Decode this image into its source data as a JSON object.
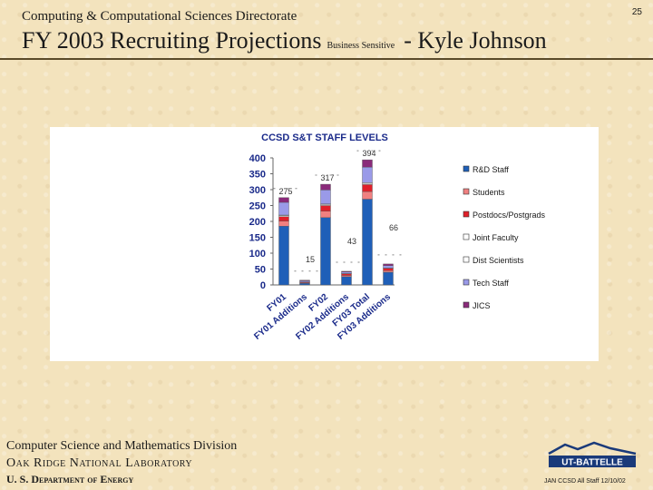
{
  "header": {
    "directorate": "Computing & Computational Sciences Directorate",
    "title": "FY 2003 Recruiting Projections",
    "sensitivity": "Business Sensitive",
    "author": "- Kyle Johnson",
    "page_number": "25"
  },
  "footer": {
    "division": "Computer Science and Mathematics Division",
    "lab": "Oak Ridge National Laboratory",
    "department": "U. S. Department of Energy",
    "logo_text": "UT-BATTELLE",
    "credit": "JAN CCSD All Staff 12/10/02"
  },
  "colors": {
    "background": "#f3e3bd",
    "rd_staff": "#1f5fb8",
    "students": "#f08080",
    "postdocs": "#e0202a",
    "joint_faculty": "#ffffff",
    "dist_scientists": "#ffffff",
    "tech_staff": "#9a9ae8",
    "jics": "#8a2a7a"
  },
  "chart_data": {
    "type": "bar",
    "stacked": true,
    "title": "CCSD S&T STAFF LEVELS",
    "categories": [
      "FY01",
      "FY01 Additions",
      "FY02",
      "FY02 Additions",
      "FY03 Total",
      "FY03 Additions"
    ],
    "totals": [
      275,
      15,
      317,
      43,
      394,
      66
    ],
    "ylim": [
      0,
      400
    ],
    "yticks": [
      0,
      50,
      100,
      150,
      200,
      250,
      300,
      350,
      400
    ],
    "grid": false,
    "legend_position": "right",
    "series": [
      {
        "name": "R&D Staff",
        "values": [
          185,
          5,
          212,
          26,
          270,
          40
        ]
      },
      {
        "name": "Students",
        "values": [
          16,
          2,
          20,
          4,
          24,
          5
        ]
      },
      {
        "name": "Postdocs/Postgrads",
        "values": [
          14,
          2,
          18,
          5,
          22,
          7
        ]
      },
      {
        "name": "Joint Faculty",
        "values": [
          3,
          0,
          3,
          1,
          4,
          1
        ]
      },
      {
        "name": "Dist Scientists",
        "values": [
          2,
          0,
          2,
          0,
          2,
          0
        ]
      },
      {
        "name": "Tech Staff",
        "values": [
          40,
          4,
          44,
          5,
          49,
          8
        ]
      },
      {
        "name": "JICS",
        "values": [
          15,
          2,
          18,
          2,
          23,
          5
        ]
      }
    ]
  }
}
